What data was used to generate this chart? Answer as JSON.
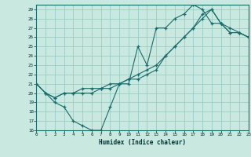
{
  "xlabel": "Humidex (Indice chaleur)",
  "ylabel": "",
  "background_color": "#c8e8e0",
  "line_color": "#1a6b6b",
  "xlim": [
    0,
    23
  ],
  "ylim": [
    16,
    29.5
  ],
  "xticks": [
    0,
    1,
    2,
    3,
    4,
    5,
    6,
    7,
    8,
    9,
    10,
    11,
    12,
    13,
    14,
    15,
    16,
    17,
    18,
    19,
    20,
    21,
    22,
    23
  ],
  "yticks": [
    16,
    17,
    18,
    19,
    20,
    21,
    22,
    23,
    24,
    25,
    26,
    27,
    28,
    29
  ],
  "line1_x": [
    0,
    1,
    2,
    3,
    4,
    5,
    6,
    7,
    8,
    9,
    10,
    11,
    12,
    13,
    14,
    15,
    16,
    17,
    18,
    19,
    20,
    21,
    22,
    23
  ],
  "line1_y": [
    21,
    20,
    19,
    18.5,
    17,
    16.5,
    16,
    16,
    18.5,
    21,
    21,
    25,
    23,
    27,
    27,
    28,
    28.5,
    29.5,
    29,
    27.5,
    27.5,
    26.5,
    26.5,
    26
  ],
  "line2_x": [
    0,
    1,
    2,
    3,
    4,
    5,
    6,
    7,
    8,
    9,
    10,
    11,
    12,
    13,
    14,
    15,
    16,
    17,
    18,
    19,
    20,
    21,
    22,
    23
  ],
  "line2_y": [
    21,
    20,
    19.5,
    20,
    20,
    20,
    20,
    20.5,
    20.5,
    21,
    21.5,
    21.5,
    22,
    22.5,
    24,
    25,
    26,
    27,
    28.5,
    29,
    27.5,
    27,
    26.5,
    26
  ],
  "line3_x": [
    0,
    1,
    2,
    3,
    4,
    5,
    6,
    7,
    8,
    9,
    10,
    11,
    12,
    13,
    14,
    15,
    16,
    17,
    18,
    19,
    20,
    21,
    22,
    23
  ],
  "line3_y": [
    21,
    20,
    19.5,
    20,
    20,
    20.5,
    20.5,
    20.5,
    21,
    21,
    21.5,
    22,
    22.5,
    23,
    24,
    25,
    26,
    27,
    28,
    29,
    27.5,
    26.5,
    26.5,
    26
  ]
}
